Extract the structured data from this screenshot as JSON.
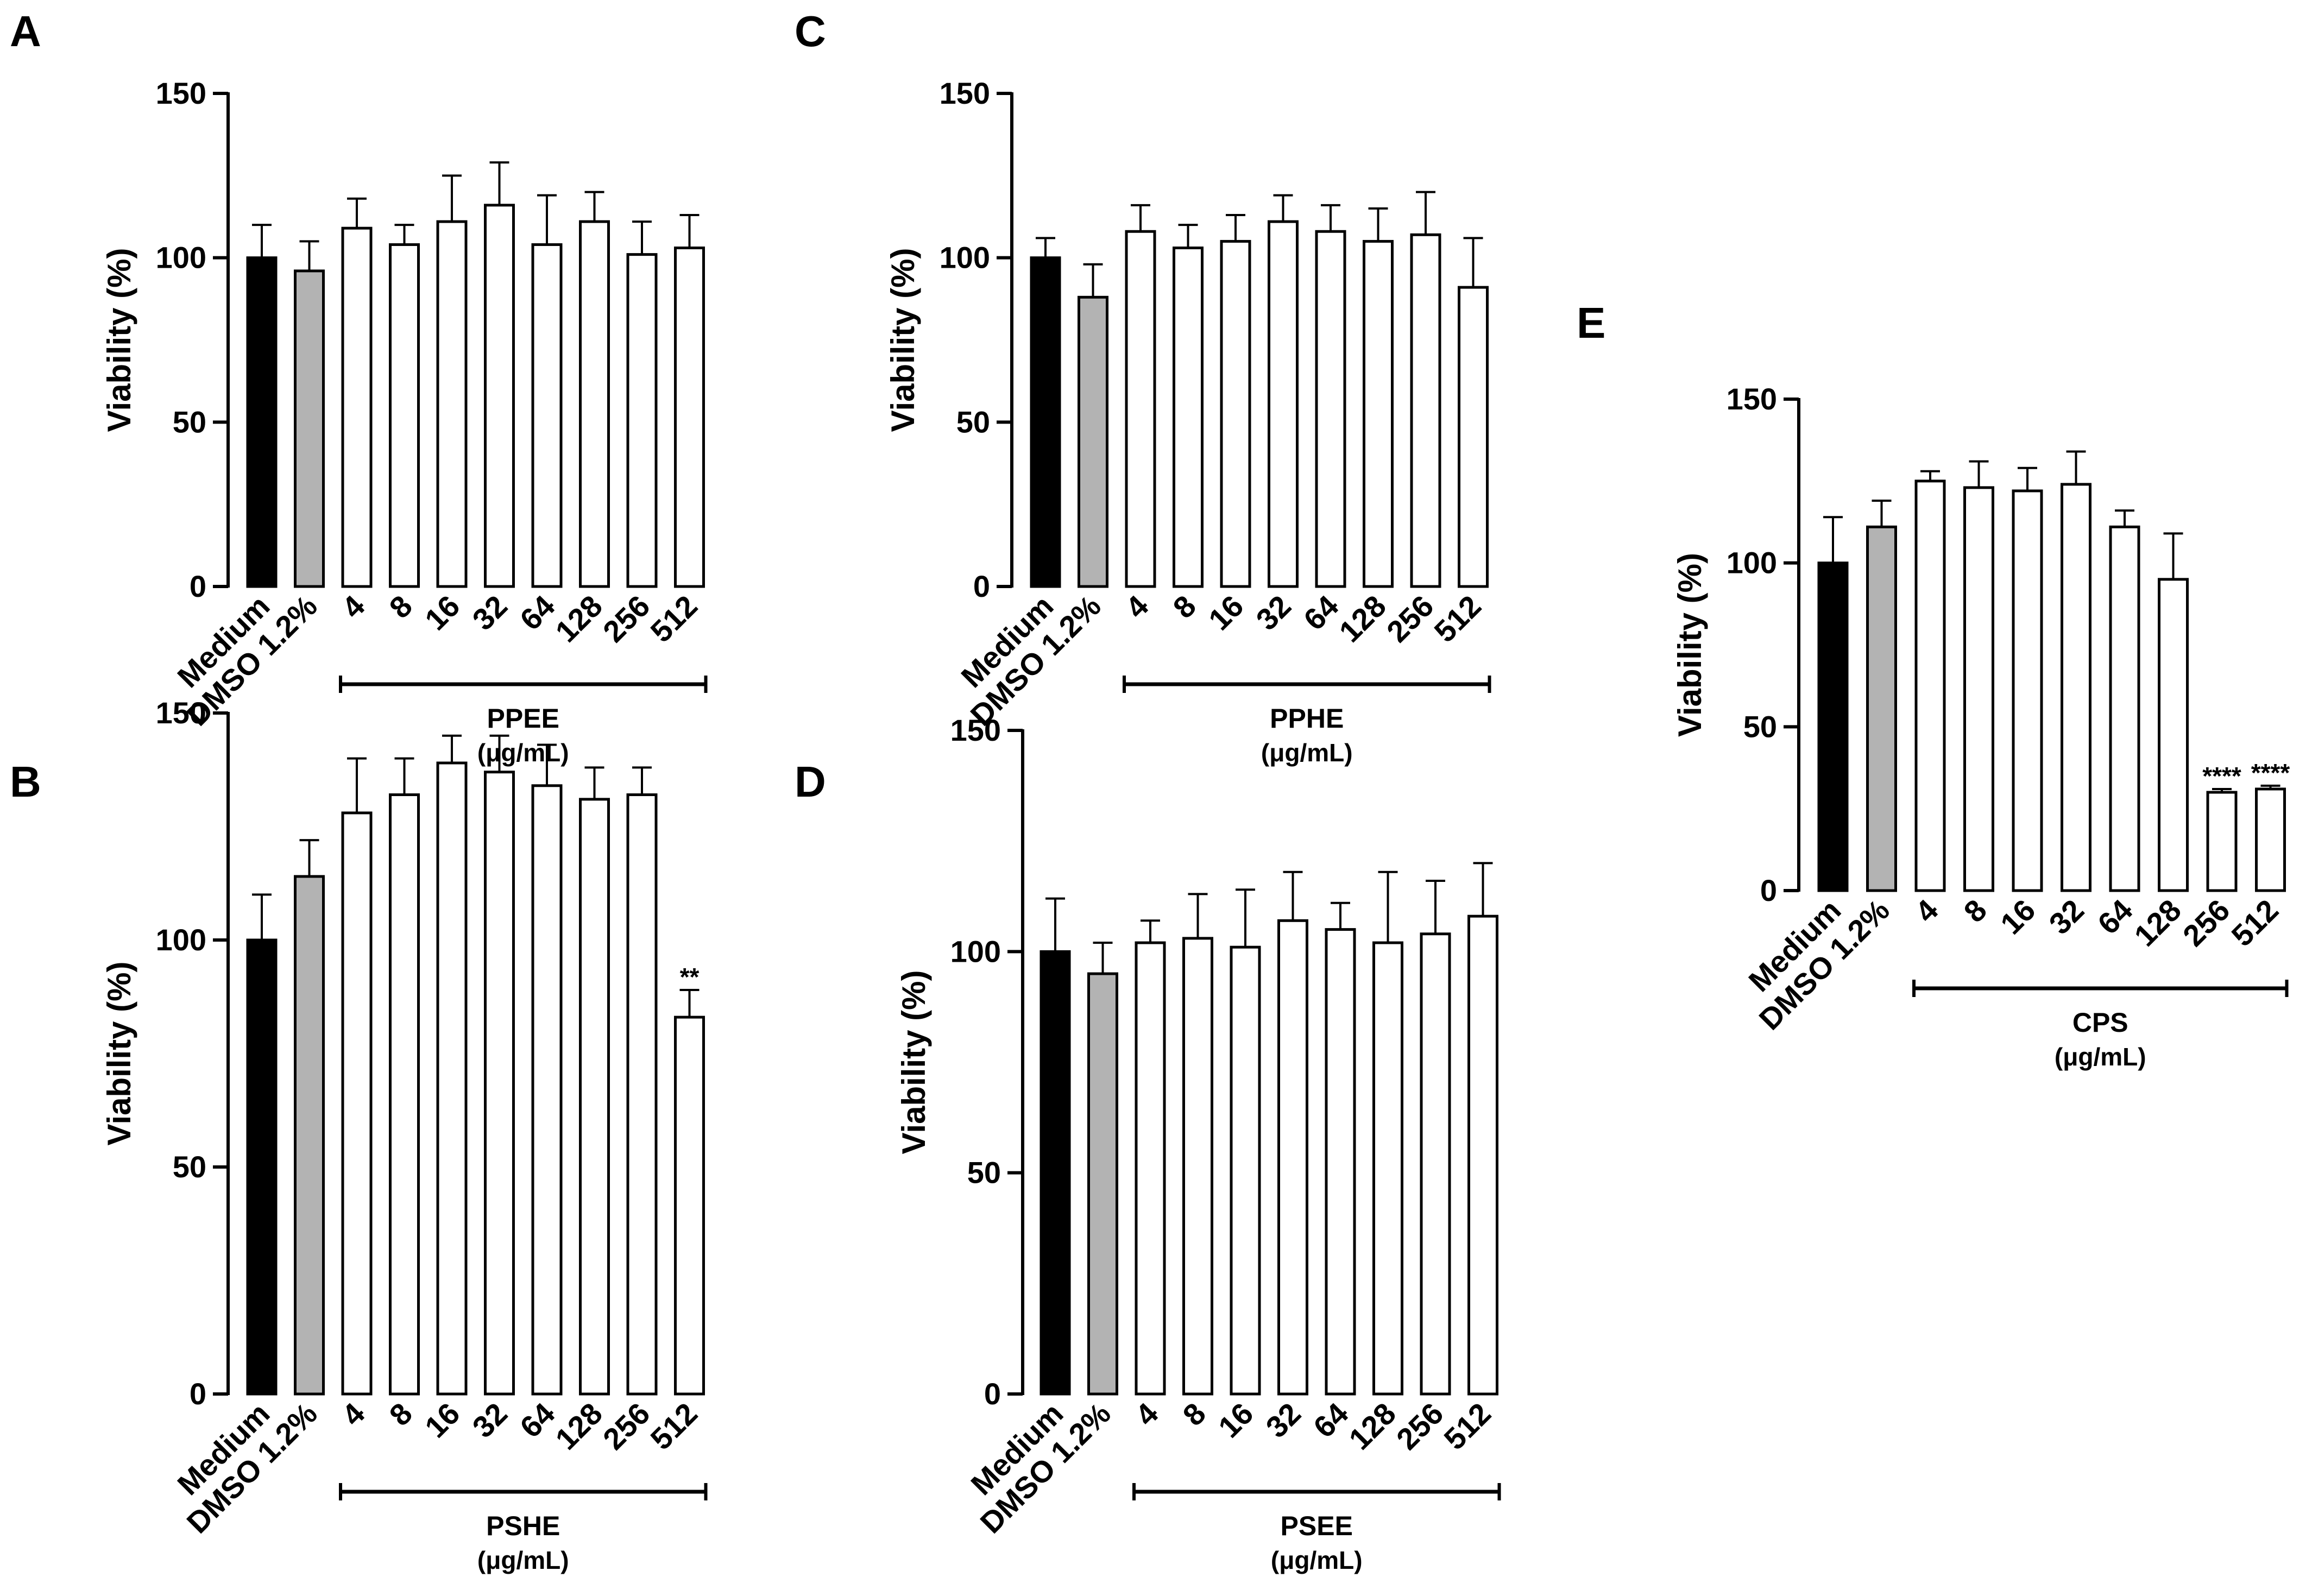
{
  "chart_data": [
    {
      "panel": "A",
      "type": "bar",
      "ylabel": "Viability (%)",
      "ylim": [
        0,
        150
      ],
      "yticks": [
        0,
        50,
        100,
        150
      ],
      "categories": [
        "Medium",
        "DMSO 1.2%",
        "4",
        "8",
        "16",
        "32",
        "64",
        "128",
        "256",
        "512"
      ],
      "values": [
        100,
        96,
        109,
        104,
        111,
        116,
        104,
        111,
        101,
        103
      ],
      "errors": [
        10,
        9,
        9,
        6,
        14,
        13,
        15,
        9,
        10,
        10
      ],
      "fills": [
        "#000000",
        "#b3b3b3",
        "#ffffff",
        "#ffffff",
        "#ffffff",
        "#ffffff",
        "#ffffff",
        "#ffffff",
        "#ffffff",
        "#ffffff"
      ],
      "significance": [
        "",
        "",
        "",
        "",
        "",
        "",
        "",
        "",
        "",
        ""
      ],
      "group_name": "PPEE",
      "group_unit": "(μg/mL)"
    },
    {
      "panel": "B",
      "type": "bar",
      "ylabel": "Viability (%)",
      "ylim": [
        0,
        150
      ],
      "yticks": [
        0,
        50,
        100,
        150
      ],
      "categories": [
        "Medium",
        "DMSO 1.2%",
        "4",
        "8",
        "16",
        "32",
        "64",
        "128",
        "256",
        "512"
      ],
      "values": [
        100,
        114,
        128,
        132,
        139,
        137,
        134,
        131,
        132,
        83
      ],
      "errors": [
        10,
        8,
        12,
        8,
        6,
        8,
        9,
        7,
        6,
        6
      ],
      "fills": [
        "#000000",
        "#b3b3b3",
        "#ffffff",
        "#ffffff",
        "#ffffff",
        "#ffffff",
        "#ffffff",
        "#ffffff",
        "#ffffff",
        "#ffffff"
      ],
      "significance": [
        "",
        "",
        "",
        "",
        "",
        "",
        "",
        "",
        "",
        "**"
      ],
      "group_name": "PSHE",
      "group_unit": "(μg/mL)"
    },
    {
      "panel": "C",
      "type": "bar",
      "ylabel": "Viability (%)",
      "ylim": [
        0,
        150
      ],
      "yticks": [
        0,
        50,
        100,
        150
      ],
      "categories": [
        "Medium",
        "DMSO 1.2%",
        "4",
        "8",
        "16",
        "32",
        "64",
        "128",
        "256",
        "512"
      ],
      "values": [
        100,
        88,
        108,
        103,
        105,
        111,
        108,
        105,
        107,
        91
      ],
      "errors": [
        6,
        10,
        8,
        7,
        8,
        8,
        8,
        10,
        13,
        15
      ],
      "fills": [
        "#000000",
        "#b3b3b3",
        "#ffffff",
        "#ffffff",
        "#ffffff",
        "#ffffff",
        "#ffffff",
        "#ffffff",
        "#ffffff",
        "#ffffff"
      ],
      "significance": [
        "",
        "",
        "",
        "",
        "",
        "",
        "",
        "",
        "",
        ""
      ],
      "group_name": "PPHE",
      "group_unit": "(μg/mL)"
    },
    {
      "panel": "D",
      "type": "bar",
      "ylabel": "Viability (%)",
      "ylim": [
        0,
        150
      ],
      "yticks": [
        0,
        50,
        100,
        150
      ],
      "categories": [
        "Medium",
        "DMSO 1.2%",
        "4",
        "8",
        "16",
        "32",
        "64",
        "128",
        "256",
        "512"
      ],
      "values": [
        100,
        95,
        102,
        103,
        101,
        107,
        105,
        102,
        104,
        108
      ],
      "errors": [
        12,
        7,
        5,
        10,
        13,
        11,
        6,
        16,
        12,
        12
      ],
      "fills": [
        "#000000",
        "#b3b3b3",
        "#ffffff",
        "#ffffff",
        "#ffffff",
        "#ffffff",
        "#ffffff",
        "#ffffff",
        "#ffffff",
        "#ffffff"
      ],
      "significance": [
        "",
        "",
        "",
        "",
        "",
        "",
        "",
        "",
        "",
        ""
      ],
      "group_name": "PSEE",
      "group_unit": "(μg/mL)"
    },
    {
      "panel": "E",
      "type": "bar",
      "ylabel": "Viability (%)",
      "ylim": [
        0,
        150
      ],
      "yticks": [
        0,
        50,
        100,
        150
      ],
      "categories": [
        "Medium",
        "DMSO 1.2%",
        "4",
        "8",
        "16",
        "32",
        "64",
        "128",
        "256",
        "512"
      ],
      "values": [
        100,
        111,
        125,
        123,
        122,
        124,
        111,
        95,
        30,
        31
      ],
      "errors": [
        14,
        8,
        3,
        8,
        7,
        10,
        5,
        14,
        1,
        1
      ],
      "fills": [
        "#000000",
        "#b3b3b3",
        "#ffffff",
        "#ffffff",
        "#ffffff",
        "#ffffff",
        "#ffffff",
        "#ffffff",
        "#ffffff",
        "#ffffff"
      ],
      "significance": [
        "",
        "",
        "",
        "",
        "",
        "",
        "",
        "",
        "****",
        "****"
      ],
      "group_name": "CPS",
      "group_unit": "(μg/mL)"
    }
  ]
}
